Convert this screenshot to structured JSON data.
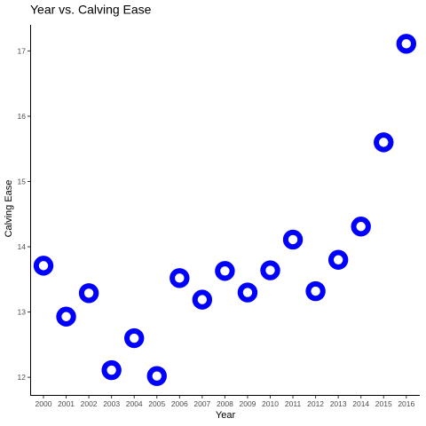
{
  "chart_data": {
    "type": "scatter",
    "title": "Year vs.  Calving Ease",
    "xlabel": "Year",
    "ylabel": "Calving Ease",
    "x": [
      "2000",
      "2001",
      "2002",
      "2003",
      "2004",
      "2005",
      "2006",
      "2007",
      "2008",
      "2009",
      "2010",
      "2011",
      "2012",
      "2013",
      "2014",
      "2015",
      "2016"
    ],
    "values": [
      13.71,
      12.93,
      13.29,
      12.11,
      12.6,
      12.02,
      13.52,
      13.19,
      13.63,
      13.3,
      13.64,
      14.11,
      13.32,
      13.8,
      14.31,
      15.6,
      17.11
    ],
    "y_ticks": [
      12,
      13,
      14,
      15,
      16,
      17
    ],
    "ylim": [
      11.73,
      17.4
    ],
    "grid": false,
    "marker_color": "#0000ff",
    "marker_fill": "#ffffff"
  }
}
